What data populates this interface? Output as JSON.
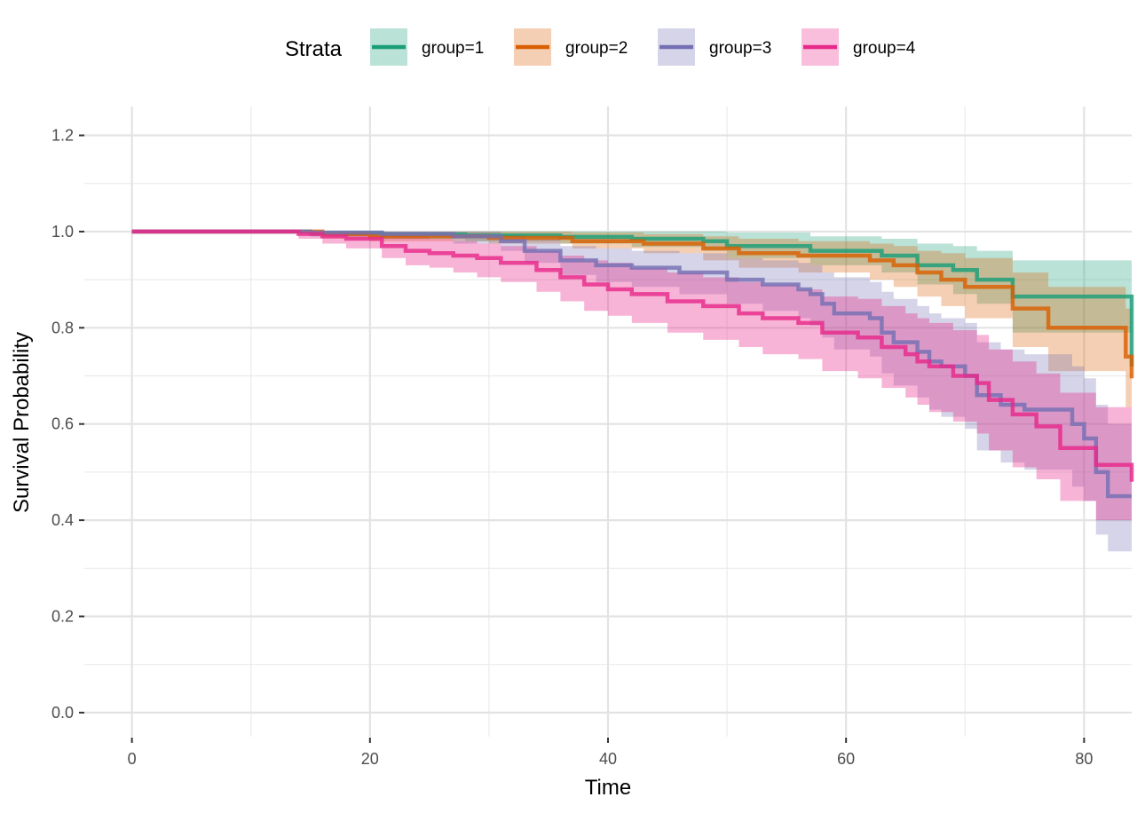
{
  "chart_data": {
    "type": "line",
    "subtype": "kaplan-meier step survival curves with confidence bands",
    "xlabel": "Time",
    "ylabel": "Survival Probability",
    "xlim": [
      -4,
      84
    ],
    "ylim": [
      -0.05,
      1.26
    ],
    "x_ticks": [
      0,
      20,
      40,
      60,
      80
    ],
    "x_tick_labels": [
      "0",
      "20",
      "40",
      "60",
      "80"
    ],
    "y_ticks": [
      0.0,
      0.2,
      0.4,
      0.6,
      0.8,
      1.0,
      1.2
    ],
    "y_tick_labels": [
      "0.0",
      "0.2",
      "0.4",
      "0.6",
      "0.8",
      "1.0",
      "1.2"
    ],
    "grid": true,
    "legend": {
      "title": "Strata",
      "position": "top",
      "entries": [
        "group=1",
        "group=2",
        "group=3",
        "group=4"
      ]
    },
    "series": [
      {
        "name": "group=1",
        "color": "#1b9e77",
        "fill_opacity": 0.3,
        "x": [
          0,
          15,
          21,
          28,
          36,
          42,
          48,
          50,
          57,
          63,
          66,
          69,
          71,
          74,
          84,
          84
        ],
        "y": [
          1.0,
          0.997,
          0.994,
          0.992,
          0.989,
          0.985,
          0.98,
          0.97,
          0.96,
          0.95,
          0.93,
          0.92,
          0.9,
          0.865,
          0.865,
          0.72
        ],
        "lower": [
          1.0,
          0.99,
          0.985,
          0.98,
          0.975,
          0.968,
          0.96,
          0.945,
          0.93,
          0.915,
          0.89,
          0.87,
          0.85,
          0.79,
          0.79,
          0.6
        ],
        "upper": [
          1.0,
          1.0,
          1.0,
          1.0,
          1.0,
          1.0,
          1.0,
          0.998,
          0.99,
          0.985,
          0.975,
          0.97,
          0.96,
          0.94,
          0.94,
          0.85
        ]
      },
      {
        "name": "group=2",
        "color": "#d95f02",
        "fill_opacity": 0.3,
        "x": [
          0,
          16,
          20,
          30,
          37,
          43,
          48,
          51,
          56,
          62,
          64,
          66,
          68,
          70,
          74,
          77,
          83.5,
          84
        ],
        "y": [
          1.0,
          0.995,
          0.99,
          0.987,
          0.98,
          0.975,
          0.965,
          0.955,
          0.95,
          0.94,
          0.93,
          0.915,
          0.9,
          0.885,
          0.84,
          0.8,
          0.74,
          0.695
        ],
        "lower": [
          1.0,
          0.985,
          0.98,
          0.975,
          0.965,
          0.955,
          0.94,
          0.925,
          0.915,
          0.9,
          0.885,
          0.865,
          0.845,
          0.82,
          0.76,
          0.71,
          0.635,
          0.58
        ],
        "upper": [
          1.0,
          1.0,
          1.0,
          1.0,
          0.998,
          0.995,
          0.99,
          0.985,
          0.98,
          0.975,
          0.97,
          0.96,
          0.955,
          0.945,
          0.915,
          0.885,
          0.84,
          0.8
        ]
      },
      {
        "name": "group=3",
        "color": "#7570b3",
        "fill_opacity": 0.3,
        "x": [
          0,
          15,
          21,
          27,
          31,
          33,
          36,
          39,
          42,
          46,
          50,
          53,
          56,
          57,
          58,
          59,
          62,
          63,
          64,
          66,
          67,
          68,
          70,
          71,
          73,
          75,
          79,
          80,
          81,
          82,
          84
        ],
        "y": [
          1.0,
          0.998,
          0.995,
          0.99,
          0.98,
          0.96,
          0.94,
          0.93,
          0.925,
          0.915,
          0.9,
          0.89,
          0.88,
          0.87,
          0.85,
          0.83,
          0.82,
          0.79,
          0.77,
          0.75,
          0.73,
          0.72,
          0.7,
          0.66,
          0.64,
          0.63,
          0.6,
          0.57,
          0.5,
          0.45,
          0.45
        ],
        "lower": [
          1.0,
          0.99,
          0.985,
          0.975,
          0.96,
          0.935,
          0.91,
          0.895,
          0.885,
          0.87,
          0.85,
          0.835,
          0.82,
          0.805,
          0.78,
          0.755,
          0.74,
          0.705,
          0.68,
          0.655,
          0.63,
          0.615,
          0.59,
          0.545,
          0.52,
          0.505,
          0.47,
          0.44,
          0.37,
          0.335,
          0.335
        ],
        "upper": [
          1.0,
          1.0,
          1.0,
          1.0,
          0.995,
          0.985,
          0.97,
          0.965,
          0.96,
          0.955,
          0.945,
          0.94,
          0.935,
          0.93,
          0.915,
          0.905,
          0.895,
          0.875,
          0.86,
          0.845,
          0.83,
          0.82,
          0.81,
          0.77,
          0.755,
          0.745,
          0.72,
          0.695,
          0.64,
          0.6,
          0.6
        ]
      },
      {
        "name": "group=4",
        "color": "#e7298a",
        "fill_opacity": 0.35,
        "x": [
          0,
          14,
          16,
          18,
          21,
          23,
          25,
          27,
          29,
          31,
          34,
          36,
          38,
          40,
          42,
          45,
          48,
          51,
          53,
          56,
          58,
          61,
          63,
          65,
          66,
          67,
          69,
          71,
          72,
          74,
          76,
          78,
          81,
          84
        ],
        "y": [
          1.0,
          0.995,
          0.99,
          0.985,
          0.97,
          0.96,
          0.955,
          0.95,
          0.945,
          0.935,
          0.92,
          0.905,
          0.89,
          0.88,
          0.87,
          0.855,
          0.845,
          0.83,
          0.82,
          0.81,
          0.79,
          0.78,
          0.76,
          0.745,
          0.73,
          0.72,
          0.7,
          0.685,
          0.65,
          0.62,
          0.595,
          0.55,
          0.515,
          0.48
        ],
        "lower": [
          1.0,
          0.985,
          0.975,
          0.965,
          0.945,
          0.93,
          0.925,
          0.915,
          0.905,
          0.895,
          0.875,
          0.855,
          0.835,
          0.825,
          0.81,
          0.79,
          0.775,
          0.76,
          0.745,
          0.735,
          0.71,
          0.695,
          0.675,
          0.655,
          0.64,
          0.625,
          0.605,
          0.58,
          0.545,
          0.51,
          0.485,
          0.44,
          0.4,
          0.365
        ],
        "upper": [
          1.0,
          1.0,
          1.0,
          1.0,
          0.995,
          0.99,
          0.985,
          0.98,
          0.975,
          0.97,
          0.96,
          0.95,
          0.94,
          0.935,
          0.925,
          0.915,
          0.905,
          0.895,
          0.89,
          0.88,
          0.865,
          0.86,
          0.845,
          0.83,
          0.82,
          0.81,
          0.795,
          0.785,
          0.755,
          0.73,
          0.705,
          0.665,
          0.635,
          0.6
        ]
      }
    ]
  }
}
